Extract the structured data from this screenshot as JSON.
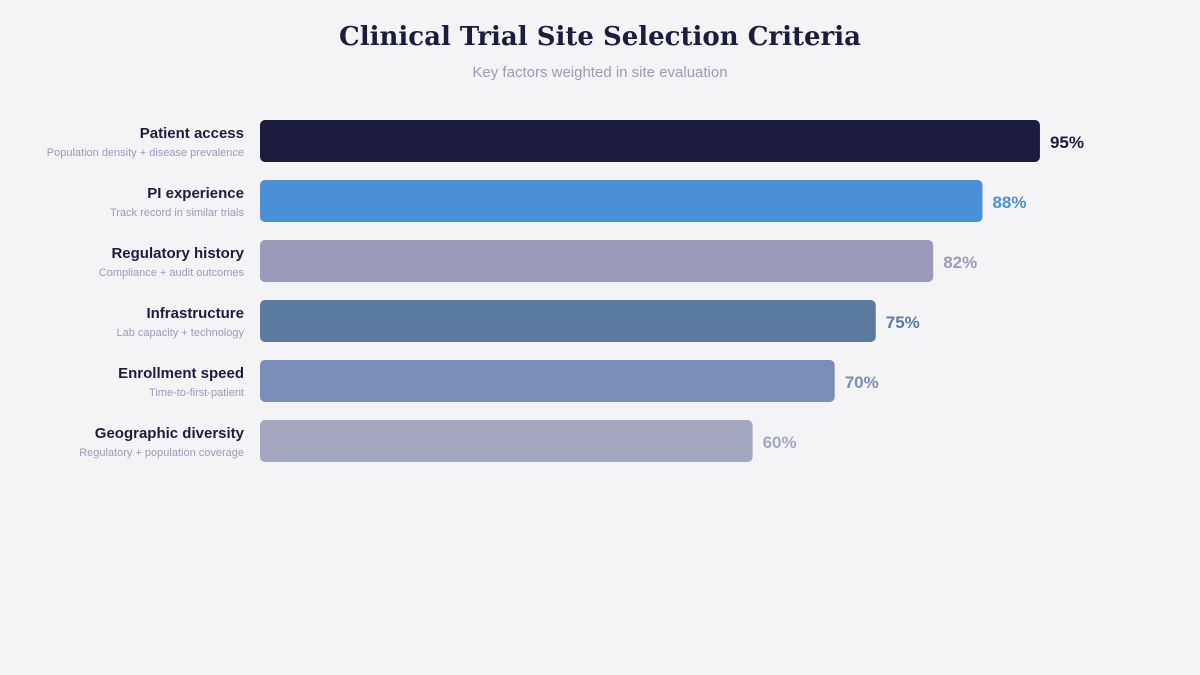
{
  "header": {
    "title": "Clinical Trial Site Selection Criteria",
    "subtitle": "Key factors weighted in site evaluation"
  },
  "chart_data": {
    "type": "bar",
    "orientation": "horizontal",
    "title": "Clinical Trial Site Selection Criteria",
    "subtitle": "Key factors weighted in site evaluation",
    "xlim": [
      0,
      100
    ],
    "grid": false,
    "legend": "none",
    "value_suffix": "%",
    "categories": [
      "Patient access",
      "PI experience",
      "Regulatory history",
      "Infrastructure",
      "Enrollment speed",
      "Geographic diversity"
    ],
    "descriptions": [
      "Population density + disease prevalence",
      "Track record in similar trials",
      "Compliance + audit outcomes",
      "Lab capacity + technology",
      "Time-to-first-patient",
      "Regulatory + population coverage"
    ],
    "values": [
      95,
      88,
      82,
      75,
      70,
      60
    ],
    "value_labels": [
      "95%",
      "88%",
      "82%",
      "75%",
      "70%",
      "60%"
    ],
    "colors": [
      "#1c1c3f",
      "#4a90d9",
      "#9a9aba",
      "#5a7aa0",
      "#7a8cb8",
      "#a3a8c0"
    ]
  }
}
